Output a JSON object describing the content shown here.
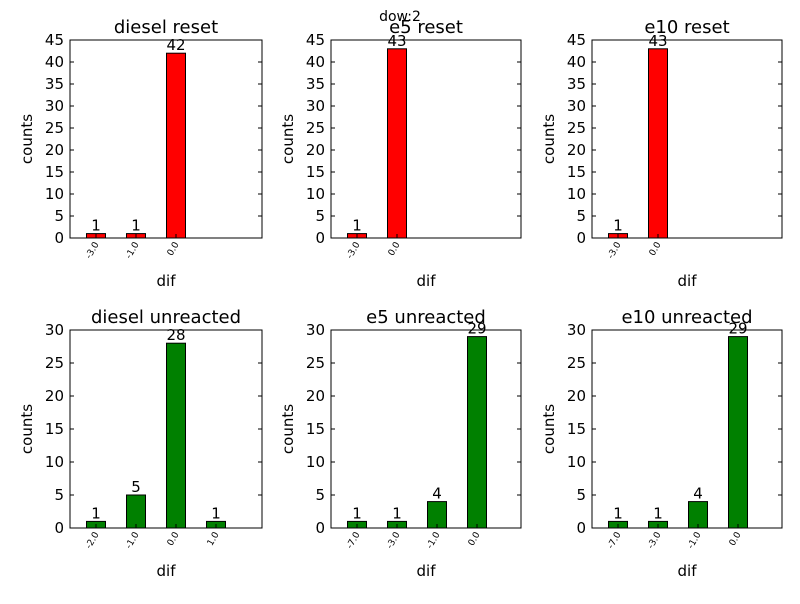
{
  "figure": {
    "suptitle": "dow:2"
  },
  "colors": {
    "reset": "#ff0000",
    "unreacted": "#008000",
    "edge": "#000000"
  },
  "chart_data": [
    {
      "type": "bar",
      "title": "diesel reset",
      "xlabel": "dif",
      "ylabel": "counts",
      "categories": [
        "-3.0",
        "-1.0",
        "0.0"
      ],
      "values": [
        1,
        1,
        42
      ],
      "ylim": [
        0,
        45
      ],
      "yticks": [
        0,
        5,
        10,
        15,
        20,
        25,
        30,
        35,
        40,
        45
      ],
      "color": "red",
      "grid": false,
      "legend": "none"
    },
    {
      "type": "bar",
      "title": "e5 reset",
      "xlabel": "dif",
      "ylabel": "counts",
      "categories": [
        "-3.0",
        "0.0"
      ],
      "values": [
        1,
        43
      ],
      "ylim": [
        0,
        45
      ],
      "yticks": [
        0,
        5,
        10,
        15,
        20,
        25,
        30,
        35,
        40,
        45
      ],
      "color": "red",
      "grid": false,
      "legend": "none"
    },
    {
      "type": "bar",
      "title": "e10 reset",
      "xlabel": "dif",
      "ylabel": "counts",
      "categories": [
        "-3.0",
        "0.0"
      ],
      "values": [
        1,
        43
      ],
      "ylim": [
        0,
        45
      ],
      "yticks": [
        0,
        5,
        10,
        15,
        20,
        25,
        30,
        35,
        40,
        45
      ],
      "color": "red",
      "grid": false,
      "legend": "none"
    },
    {
      "type": "bar",
      "title": "diesel unreacted",
      "xlabel": "dif",
      "ylabel": "counts",
      "categories": [
        "-2.0",
        "-1.0",
        "0.0",
        "1.0"
      ],
      "values": [
        1,
        5,
        28,
        1
      ],
      "ylim": [
        0,
        30
      ],
      "yticks": [
        0,
        5,
        10,
        15,
        20,
        25,
        30
      ],
      "color": "green",
      "grid": false,
      "legend": "none"
    },
    {
      "type": "bar",
      "title": "e5 unreacted",
      "xlabel": "dif",
      "ylabel": "counts",
      "categories": [
        "-7.0",
        "-3.0",
        "-1.0",
        "0.0"
      ],
      "values": [
        1,
        1,
        4,
        29
      ],
      "ylim": [
        0,
        30
      ],
      "yticks": [
        0,
        5,
        10,
        15,
        20,
        25,
        30
      ],
      "color": "green",
      "grid": false,
      "legend": "none"
    },
    {
      "type": "bar",
      "title": "e10 unreacted",
      "xlabel": "dif",
      "ylabel": "counts",
      "categories": [
        "-7.0",
        "-3.0",
        "-1.0",
        "0.0"
      ],
      "values": [
        1,
        1,
        4,
        29
      ],
      "ylim": [
        0,
        30
      ],
      "yticks": [
        0,
        5,
        10,
        15,
        20,
        25,
        30
      ],
      "color": "green",
      "grid": false,
      "legend": "none"
    }
  ]
}
